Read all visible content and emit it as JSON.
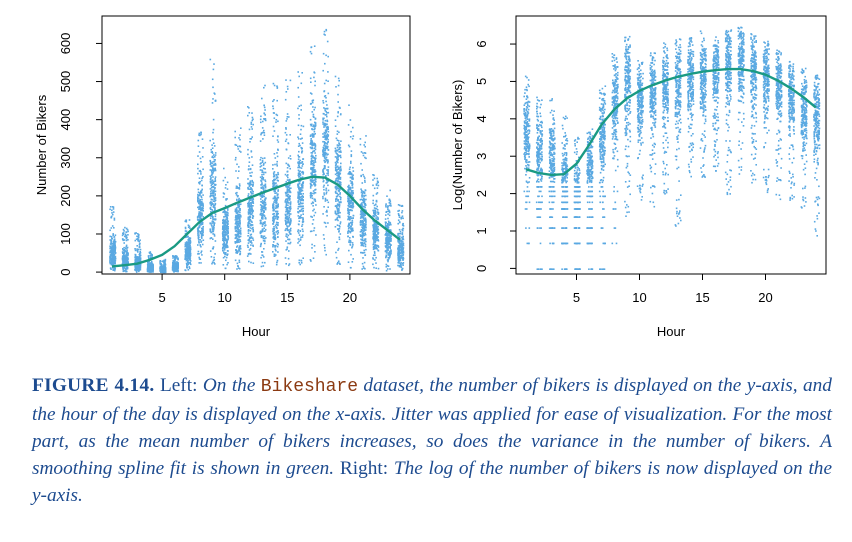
{
  "chart_data": [
    {
      "type": "scatter",
      "panel": "left",
      "title": "",
      "xlabel": "Hour",
      "ylabel": "Number of Bikers",
      "xlim": [
        0.2,
        24.8
      ],
      "ylim": [
        -5,
        672
      ],
      "xticks": [
        5,
        10,
        15,
        20
      ],
      "yticks": [
        0,
        100,
        200,
        300,
        400,
        500,
        600
      ],
      "grid": false,
      "legend": "none",
      "point_color": "#5aa9e2",
      "line_color": "#1a9a83",
      "columns": [
        {
          "hour": 1,
          "min": 5,
          "max": 180,
          "mean": 48
        },
        {
          "hour": 2,
          "min": 3,
          "max": 120,
          "mean": 33
        },
        {
          "hour": 3,
          "min": 2,
          "max": 105,
          "mean": 24
        },
        {
          "hour": 4,
          "min": 1,
          "max": 55,
          "mean": 12
        },
        {
          "hour": 5,
          "min": 1,
          "max": 35,
          "mean": 9
        },
        {
          "hour": 6,
          "min": 2,
          "max": 45,
          "mean": 17
        },
        {
          "hour": 7,
          "min": 5,
          "max": 140,
          "mean": 60
        },
        {
          "hour": 8,
          "min": 10,
          "max": 370,
          "mean": 140
        },
        {
          "hour": 9,
          "min": 15,
          "max": 565,
          "mean": 200
        },
        {
          "hour": 10,
          "min": 10,
          "max": 280,
          "mean": 110
        },
        {
          "hour": 11,
          "min": 10,
          "max": 380,
          "mean": 130
        },
        {
          "hour": 12,
          "min": 15,
          "max": 440,
          "mean": 165
        },
        {
          "hour": 13,
          "min": 15,
          "max": 500,
          "mean": 170
        },
        {
          "hour": 14,
          "min": 15,
          "max": 500,
          "mean": 165
        },
        {
          "hour": 15,
          "min": 15,
          "max": 520,
          "mean": 170
        },
        {
          "hour": 16,
          "min": 20,
          "max": 550,
          "mean": 220
        },
        {
          "hour": 17,
          "min": 25,
          "max": 600,
          "mean": 300
        },
        {
          "hour": 18,
          "min": 20,
          "max": 640,
          "mean": 310
        },
        {
          "hour": 19,
          "min": 15,
          "max": 520,
          "mean": 240
        },
        {
          "hour": 20,
          "min": 10,
          "max": 450,
          "mean": 180
        },
        {
          "hour": 21,
          "min": 10,
          "max": 360,
          "mean": 145
        },
        {
          "hour": 22,
          "min": 5,
          "max": 260,
          "mean": 115
        },
        {
          "hour": 23,
          "min": 5,
          "max": 220,
          "mean": 85
        },
        {
          "hour": 24,
          "min": 5,
          "max": 180,
          "mean": 60
        }
      ],
      "spline": {
        "x": [
          1,
          2,
          3,
          4,
          5,
          6,
          7,
          8,
          9,
          10,
          11,
          12,
          13,
          14,
          15,
          16,
          17,
          18,
          19,
          20,
          21,
          22,
          23,
          24
        ],
        "y": [
          15,
          18,
          22,
          32,
          45,
          68,
          100,
          132,
          155,
          168,
          182,
          195,
          208,
          220,
          232,
          243,
          250,
          248,
          230,
          200,
          165,
          135,
          110,
          85
        ]
      }
    },
    {
      "type": "scatter",
      "panel": "right",
      "title": "",
      "xlabel": "Hour",
      "ylabel": "Log(Number of Bikers)",
      "xlim": [
        0.2,
        24.8
      ],
      "ylim": [
        -0.15,
        6.75
      ],
      "xticks": [
        5,
        10,
        15,
        20
      ],
      "yticks": [
        0,
        1,
        2,
        3,
        4,
        5,
        6
      ],
      "grid": false,
      "legend": "none",
      "point_color": "#5aa9e2",
      "line_color": "#1a9a83",
      "columns": [
        {
          "hour": 1,
          "min": 0.69,
          "max": 5.2,
          "mean": 3.6
        },
        {
          "hour": 2,
          "min": 0.0,
          "max": 4.8,
          "mean": 3.2
        },
        {
          "hour": 3,
          "min": 0.0,
          "max": 4.7,
          "mean": 3.0
        },
        {
          "hour": 4,
          "min": 0.0,
          "max": 4.1,
          "mean": 2.3
        },
        {
          "hour": 5,
          "min": 0.0,
          "max": 3.6,
          "mean": 2.0
        },
        {
          "hour": 6,
          "min": 0.0,
          "max": 3.9,
          "mean": 2.7
        },
        {
          "hour": 7,
          "min": 0.0,
          "max": 4.9,
          "mean": 3.6
        },
        {
          "hour": 8,
          "min": 0.69,
          "max": 5.9,
          "mean": 4.6
        },
        {
          "hour": 9,
          "min": 1.4,
          "max": 6.3,
          "mean": 5.0
        },
        {
          "hour": 10,
          "min": 1.8,
          "max": 5.6,
          "mean": 4.5
        },
        {
          "hour": 11,
          "min": 1.6,
          "max": 5.9,
          "mean": 4.7
        },
        {
          "hour": 12,
          "min": 2.0,
          "max": 6.1,
          "mean": 4.9
        },
        {
          "hour": 13,
          "min": 1.1,
          "max": 6.2,
          "mean": 5.0
        },
        {
          "hour": 14,
          "min": 2.3,
          "max": 6.2,
          "mean": 5.0
        },
        {
          "hour": 15,
          "min": 2.4,
          "max": 6.4,
          "mean": 5.1
        },
        {
          "hour": 16,
          "min": 2.6,
          "max": 6.3,
          "mean": 5.3
        },
        {
          "hour": 17,
          "min": 2.0,
          "max": 6.4,
          "mean": 5.5
        },
        {
          "hour": 18,
          "min": 2.4,
          "max": 6.5,
          "mean": 5.6
        },
        {
          "hour": 19,
          "min": 2.3,
          "max": 6.3,
          "mean": 5.3
        },
        {
          "hour": 20,
          "min": 2.0,
          "max": 6.1,
          "mean": 5.1
        },
        {
          "hour": 21,
          "min": 1.8,
          "max": 5.9,
          "mean": 4.9
        },
        {
          "hour": 22,
          "min": 1.8,
          "max": 5.6,
          "mean": 4.6
        },
        {
          "hour": 23,
          "min": 1.6,
          "max": 5.4,
          "mean": 4.3
        },
        {
          "hour": 24,
          "min": 0.69,
          "max": 5.2,
          "mean": 4.0
        }
      ],
      "discrete_levels": [
        0,
        0.69,
        1.1,
        1.39,
        1.61,
        1.79,
        1.95,
        2.08,
        2.2
      ],
      "discrete_hours": [
        1,
        2,
        3,
        4,
        5,
        6,
        7,
        8
      ],
      "spline": {
        "x": [
          1,
          2,
          3,
          4,
          5,
          6,
          7,
          8,
          9,
          10,
          11,
          12,
          13,
          14,
          15,
          16,
          17,
          18,
          19,
          20,
          21,
          22,
          23,
          24
        ],
        "y": [
          2.65,
          2.55,
          2.5,
          2.52,
          2.8,
          3.3,
          3.85,
          4.25,
          4.55,
          4.75,
          4.9,
          5.02,
          5.12,
          5.2,
          5.26,
          5.3,
          5.33,
          5.33,
          5.28,
          5.18,
          5.02,
          4.82,
          4.58,
          4.3
        ]
      }
    }
  ],
  "caption": {
    "label": "FIGURE 4.14.",
    "left_word": "Left:",
    "part1": "On the",
    "dataset": "Bikeshare",
    "part2": "dataset, the number of bikers is displayed on the y-axis, and the hour of the day is displayed on the x-axis. Jitter was applied for ease of visualization. For the most part, as the mean number of bikers increases, so does the variance in the number of bikers. A smoothing spline fit is shown in green.",
    "right_word": "Right:",
    "part3": "The log of the number of bikers is now displayed on the y-axis."
  }
}
